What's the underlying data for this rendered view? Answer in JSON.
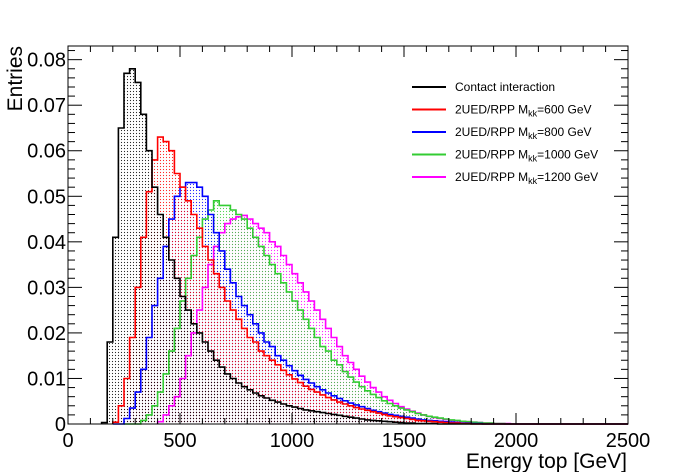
{
  "chart_data": {
    "type": "histogram",
    "title": "",
    "xlabel": "Energy top [GeV]",
    "ylabel": "Entries",
    "xlim": [
      0,
      2500
    ],
    "ylim": [
      0,
      0.083
    ],
    "bin_width": 25,
    "x_ticks": [
      0,
      500,
      1000,
      1500,
      2000,
      2500
    ],
    "x_tick_labels": [
      "0",
      "500",
      "1000",
      "1500",
      "2000",
      "2500"
    ],
    "y_ticks": [
      0,
      0.01,
      0.02,
      0.03,
      0.04,
      0.05,
      0.06,
      0.07,
      0.08
    ],
    "y_tick_labels": [
      "0",
      "0.01",
      "0.02",
      "0.03",
      "0.04",
      "0.05",
      "0.06",
      "0.07",
      "0.08"
    ],
    "legend": {
      "position": "top-right",
      "entries": [
        {
          "name": "Contact interaction",
          "base": "Contact interaction",
          "sub": "",
          "tail": "",
          "color": "#000000"
        },
        {
          "name": "2UED/RPP M_kk=600 GeV",
          "base": "2UED/RPP M",
          "sub": "kk",
          "tail": "=600 GeV",
          "color": "#ff0000"
        },
        {
          "name": "2UED/RPP M_kk=800 GeV",
          "base": "2UED/RPP M",
          "sub": "kk",
          "tail": "=800 GeV",
          "color": "#0000ff"
        },
        {
          "name": "2UED/RPP M_kk=1000 GeV",
          "base": "2UED/RPP M",
          "sub": "kk",
          "tail": "=1000 GeV",
          "color": "#33cc33"
        },
        {
          "name": "2UED/RPP M_kk=1200 GeV",
          "base": "2UED/RPP M",
          "sub": "kk",
          "tail": "=1200 GeV",
          "color": "#ff00ff"
        }
      ]
    },
    "series": [
      {
        "name": "Contact interaction",
        "color": "#000000",
        "x_start": 150,
        "values": [
          0.0003,
          0.018,
          0.041,
          0.065,
          0.077,
          0.078,
          0.075,
          0.068,
          0.06,
          0.052,
          0.046,
          0.041,
          0.036,
          0.032,
          0.028,
          0.025,
          0.022,
          0.02,
          0.018,
          0.016,
          0.014,
          0.0125,
          0.011,
          0.01,
          0.009,
          0.0082,
          0.0075,
          0.0068,
          0.0062,
          0.0057,
          0.0052,
          0.0048,
          0.0044,
          0.004,
          0.0037,
          0.0034,
          0.0031,
          0.0029,
          0.0027,
          0.0025,
          0.0023,
          0.0021,
          0.0019,
          0.0017,
          0.0015,
          0.0013,
          0.0011,
          0.0009,
          0.0008,
          0.0007,
          0.0006,
          0.0005,
          0.0004,
          0.0003,
          0.0002,
          0.0002,
          0.0001,
          0.0001,
          0.0001,
          0.0001,
          0,
          0,
          0,
          0,
          0,
          0,
          0,
          0,
          0,
          0,
          0,
          0,
          0,
          0,
          0,
          0,
          0,
          0,
          0,
          0,
          0,
          0,
          0,
          0,
          0,
          0,
          0,
          0,
          0,
          0,
          0,
          0,
          0,
          0,
          0,
          0,
          0,
          0,
          0,
          0,
          0,
          0,
          0,
          0
        ]
      },
      {
        "name": "2UED/RPP M_kk=600 GeV",
        "color": "#ff0000",
        "x_start": 200,
        "values": [
          0.0004,
          0.004,
          0.01,
          0.019,
          0.03,
          0.041,
          0.051,
          0.058,
          0.063,
          0.062,
          0.06,
          0.055,
          0.052,
          0.049,
          0.046,
          0.043,
          0.039,
          0.036,
          0.033,
          0.03,
          0.027,
          0.025,
          0.023,
          0.021,
          0.019,
          0.018,
          0.016,
          0.015,
          0.014,
          0.013,
          0.0118,
          0.0108,
          0.0099,
          0.0091,
          0.0083,
          0.0076,
          0.007,
          0.0064,
          0.0058,
          0.0053,
          0.0048,
          0.0044,
          0.004,
          0.0036,
          0.0033,
          0.003,
          0.0027,
          0.0024,
          0.0021,
          0.0018,
          0.0016,
          0.0014,
          0.0012,
          0.001,
          0.0008,
          0.0007,
          0.0006,
          0.0005,
          0.0004,
          0.0003,
          0.0002,
          0.0002,
          0.0001,
          0.0001,
          0,
          0,
          0,
          0,
          0,
          0,
          0,
          0,
          0,
          0,
          0,
          0,
          0,
          0,
          0,
          0,
          0,
          0,
          0,
          0,
          0,
          0,
          0,
          0,
          0,
          0,
          0,
          0,
          0,
          0,
          0,
          0,
          0,
          0,
          0,
          0,
          0,
          0,
          0,
          0
        ]
      },
      {
        "name": "2UED/RPP M_kk=800 GeV",
        "color": "#0000ff",
        "x_start": 200,
        "values": [
          0,
          0,
          0.0012,
          0.0035,
          0.007,
          0.012,
          0.019,
          0.026,
          0.032,
          0.039,
          0.045,
          0.05,
          0.052,
          0.053,
          0.053,
          0.052,
          0.05,
          0.046,
          0.042,
          0.038,
          0.034,
          0.031,
          0.028,
          0.026,
          0.024,
          0.022,
          0.02,
          0.018,
          0.017,
          0.015,
          0.014,
          0.0128,
          0.0117,
          0.0107,
          0.0098,
          0.009,
          0.0082,
          0.0075,
          0.0068,
          0.0062,
          0.0056,
          0.0051,
          0.0046,
          0.0042,
          0.0038,
          0.0034,
          0.003,
          0.0027,
          0.0024,
          0.0021,
          0.0019,
          0.0017,
          0.0015,
          0.0013,
          0.0011,
          0.0009,
          0.0008,
          0.0007,
          0.0006,
          0.0005,
          0.0004,
          0.0003,
          0.0002,
          0.0002,
          0.0001,
          0.0001,
          0,
          0,
          0,
          0,
          0,
          0,
          0,
          0,
          0,
          0,
          0,
          0,
          0,
          0,
          0,
          0,
          0,
          0,
          0,
          0,
          0,
          0,
          0,
          0,
          0,
          0,
          0,
          0,
          0,
          0,
          0,
          0,
          0,
          0,
          0,
          0,
          0,
          0
        ]
      },
      {
        "name": "2UED/RPP M_kk=1000 GeV",
        "color": "#33cc33",
        "x_start": 250,
        "values": [
          0,
          0,
          0,
          0.0008,
          0.002,
          0.004,
          0.007,
          0.011,
          0.016,
          0.021,
          0.027,
          0.032,
          0.037,
          0.041,
          0.045,
          0.047,
          0.049,
          0.048,
          0.048,
          0.047,
          0.046,
          0.045,
          0.043,
          0.041,
          0.039,
          0.037,
          0.035,
          0.033,
          0.031,
          0.029,
          0.027,
          0.025,
          0.023,
          0.021,
          0.019,
          0.017,
          0.016,
          0.014,
          0.013,
          0.0115,
          0.0103,
          0.0092,
          0.0082,
          0.0073,
          0.0065,
          0.0058,
          0.0051,
          0.0045,
          0.004,
          0.0035,
          0.0031,
          0.0027,
          0.0023,
          0.002,
          0.0017,
          0.0015,
          0.0013,
          0.0011,
          0.0009,
          0.0008,
          0.0006,
          0.0005,
          0.0004,
          0.0003,
          0.0002,
          0.0002,
          0.0001,
          0.0001,
          0,
          0,
          0,
          0,
          0,
          0,
          0,
          0,
          0,
          0,
          0,
          0,
          0,
          0,
          0,
          0,
          0,
          0,
          0,
          0,
          0,
          0,
          0,
          0,
          0,
          0,
          0,
          0,
          0,
          0,
          0,
          0,
          0,
          0,
          0
        ]
      },
      {
        "name": "2UED/RPP M_kk=1200 GeV",
        "color": "#ff00ff",
        "x_start": 400,
        "values": [
          0.0005,
          0.002,
          0.004,
          0.006,
          0.01,
          0.015,
          0.02,
          0.025,
          0.03,
          0.035,
          0.039,
          0.042,
          0.044,
          0.045,
          0.0455,
          0.0458,
          0.045,
          0.044,
          0.043,
          0.042,
          0.04,
          0.039,
          0.037,
          0.035,
          0.033,
          0.031,
          0.029,
          0.027,
          0.025,
          0.023,
          0.021,
          0.019,
          0.017,
          0.015,
          0.0135,
          0.012,
          0.0105,
          0.0092,
          0.008,
          0.007,
          0.006,
          0.0052,
          0.0045,
          0.0038,
          0.0033,
          0.0028,
          0.0024,
          0.002,
          0.0017,
          0.0014,
          0.0012,
          0.001,
          0.0008,
          0.0007,
          0.0006,
          0.0005,
          0.0004,
          0.0003,
          0.0002,
          0.0002,
          0.0001,
          0.0001,
          0.0001,
          0,
          0,
          0,
          0,
          0,
          0,
          0,
          0,
          0,
          0,
          0,
          0,
          0,
          0,
          0,
          0,
          0,
          0,
          0,
          0,
          0,
          0,
          0,
          0,
          0,
          0,
          0,
          0,
          0,
          0,
          0,
          0,
          0,
          0,
          0,
          0,
          0
        ]
      }
    ]
  }
}
